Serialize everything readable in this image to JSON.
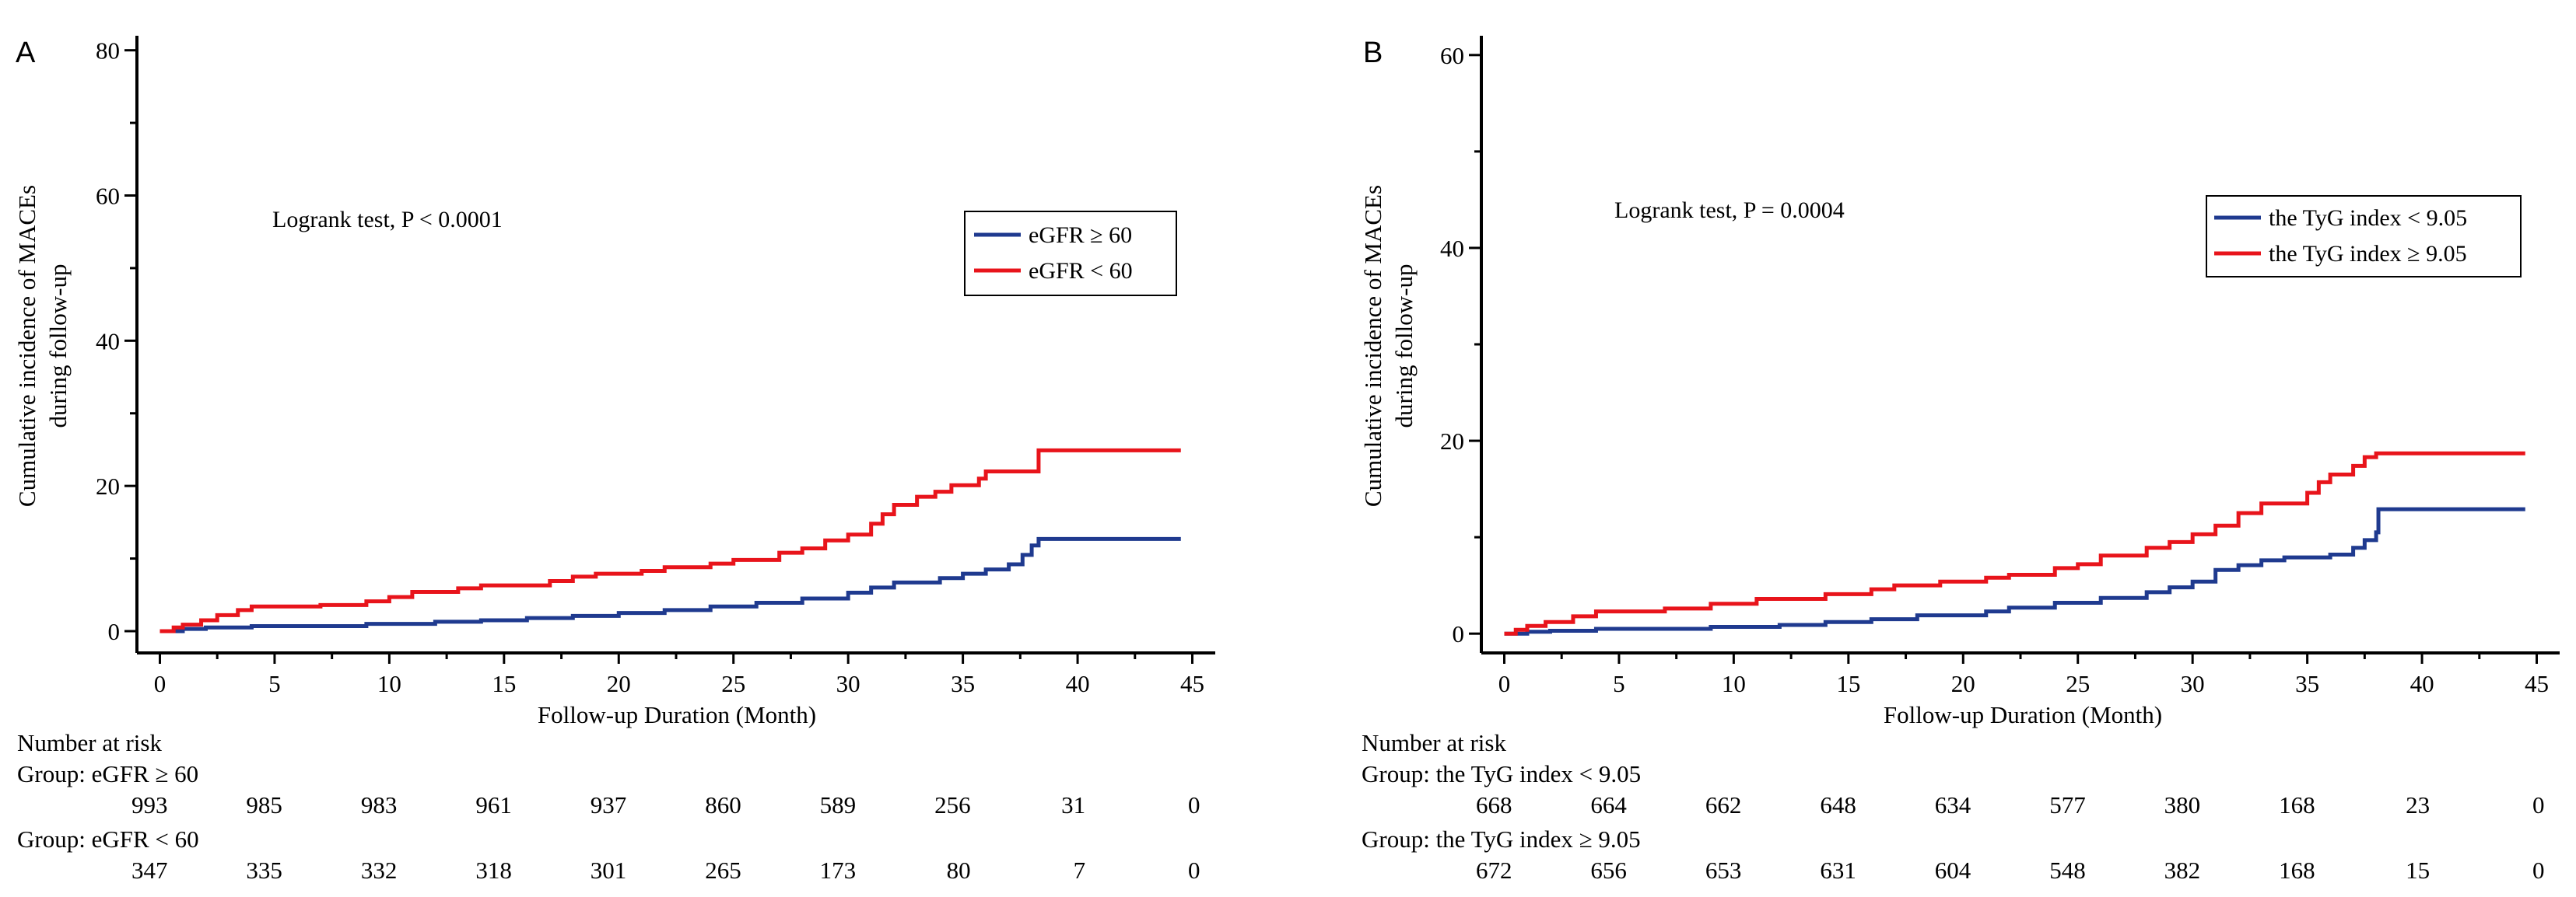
{
  "chart_data": [
    {
      "type": "line",
      "panel_label": "A",
      "xlabel": "Follow-up Duration (Month)",
      "ylabel_line1": "Cumulative incidence of MACEs",
      "ylabel_line2": "during follow-up",
      "xlim": [
        -1,
        46
      ],
      "ylim": [
        -3,
        82
      ],
      "xticks": [
        0,
        5,
        10,
        15,
        20,
        25,
        30,
        35,
        40,
        45
      ],
      "yticks": [
        0,
        20,
        40,
        60,
        80
      ],
      "annotation": "Logrank test, P < 0.0001",
      "series": [
        {
          "name": "eGFR ≥ 60",
          "color": "#1f3a8f",
          "points": [
            [
              0,
              0
            ],
            [
              1,
              0.3
            ],
            [
              2,
              0.5
            ],
            [
              4,
              0.7
            ],
            [
              9,
              1.0
            ],
            [
              12,
              1.3
            ],
            [
              14,
              1.5
            ],
            [
              16,
              1.8
            ],
            [
              18,
              2.1
            ],
            [
              20,
              2.5
            ],
            [
              22,
              2.9
            ],
            [
              24,
              3.4
            ],
            [
              26,
              3.9
            ],
            [
              28,
              4.5
            ],
            [
              30,
              5.3
            ],
            [
              31,
              6.0
            ],
            [
              32,
              6.7
            ],
            [
              34,
              7.3
            ],
            [
              35,
              7.9
            ],
            [
              36,
              8.5
            ],
            [
              37,
              9.2
            ],
            [
              37.6,
              10.5
            ],
            [
              38,
              11.8
            ],
            [
              38.3,
              12.7
            ],
            [
              44.5,
              12.7
            ]
          ]
        },
        {
          "name": "eGFR < 60",
          "color": "#e8141b",
          "points": [
            [
              0,
              0
            ],
            [
              0.6,
              0.5
            ],
            [
              1,
              0.9
            ],
            [
              1.8,
              1.5
            ],
            [
              2.5,
              2.2
            ],
            [
              3.4,
              2.9
            ],
            [
              4,
              3.4
            ],
            [
              7,
              3.6
            ],
            [
              9,
              4.1
            ],
            [
              10,
              4.7
            ],
            [
              11,
              5.4
            ],
            [
              13,
              5.9
            ],
            [
              14,
              6.3
            ],
            [
              17,
              6.9
            ],
            [
              18,
              7.5
            ],
            [
              19,
              7.9
            ],
            [
              21,
              8.3
            ],
            [
              22,
              8.8
            ],
            [
              24,
              9.3
            ],
            [
              25,
              9.8
            ],
            [
              27,
              10.8
            ],
            [
              28,
              11.4
            ],
            [
              29,
              12.5
            ],
            [
              30,
              13.3
            ],
            [
              31,
              14.8
            ],
            [
              31.5,
              16.1
            ],
            [
              32,
              17.4
            ],
            [
              33,
              18.5
            ],
            [
              33.8,
              19.2
            ],
            [
              34.5,
              20.1
            ],
            [
              35.7,
              21.0
            ],
            [
              36,
              22.0
            ],
            [
              38,
              22.0
            ],
            [
              38.3,
              24.9
            ],
            [
              44.5,
              24.9
            ]
          ]
        }
      ],
      "risk_table": {
        "title": "Number at risk",
        "groups": [
          {
            "label": "Group: eGFR ≥ 60",
            "values": [
              "993",
              "985",
              "983",
              "961",
              "937",
              "860",
              "589",
              "256",
              "31",
              "0"
            ]
          },
          {
            "label": "Group: eGFR < 60",
            "values": [
              "347",
              "335",
              "332",
              "318",
              "301",
              "265",
              "173",
              "80",
              "7",
              "0"
            ]
          }
        ]
      }
    },
    {
      "type": "line",
      "panel_label": "B",
      "xlabel": "Follow-up Duration (Month)",
      "ylabel_line1": "Cumulative incidence of MACEs",
      "ylabel_line2": "during follow-up",
      "xlim": [
        -1,
        46
      ],
      "ylim": [
        -2,
        62
      ],
      "xticks": [
        0,
        5,
        10,
        15,
        20,
        25,
        30,
        35,
        40,
        45
      ],
      "yticks": [
        0,
        20,
        40,
        60
      ],
      "annotation": "Logrank test, P = 0.0004",
      "series": [
        {
          "name": "the TyG index < 9.05",
          "color": "#1f3a8f",
          "points": [
            [
              0,
              0
            ],
            [
              1,
              0.2
            ],
            [
              2,
              0.3
            ],
            [
              4,
              0.5
            ],
            [
              9,
              0.7
            ],
            [
              12,
              0.9
            ],
            [
              14,
              1.2
            ],
            [
              16,
              1.5
            ],
            [
              18,
              1.9
            ],
            [
              21,
              2.3
            ],
            [
              22,
              2.7
            ],
            [
              24,
              3.2
            ],
            [
              26,
              3.7
            ],
            [
              28,
              4.3
            ],
            [
              29,
              4.8
            ],
            [
              30,
              5.4
            ],
            [
              31,
              6.6
            ],
            [
              32,
              7.1
            ],
            [
              33,
              7.6
            ],
            [
              34,
              7.9
            ],
            [
              36,
              8.2
            ],
            [
              37,
              8.9
            ],
            [
              37.5,
              9.7
            ],
            [
              38,
              10.5
            ],
            [
              38.1,
              12.9
            ],
            [
              44.5,
              12.9
            ]
          ]
        },
        {
          "name": "the TyG index ≥ 9.05",
          "color": "#e8141b",
          "points": [
            [
              0,
              0
            ],
            [
              0.5,
              0.4
            ],
            [
              1,
              0.8
            ],
            [
              1.8,
              1.2
            ],
            [
              3,
              1.8
            ],
            [
              4,
              2.3
            ],
            [
              7,
              2.6
            ],
            [
              9,
              3.1
            ],
            [
              11,
              3.6
            ],
            [
              14,
              4.1
            ],
            [
              16,
              4.6
            ],
            [
              17,
              5.0
            ],
            [
              19,
              5.4
            ],
            [
              21,
              5.8
            ],
            [
              22,
              6.1
            ],
            [
              24,
              6.8
            ],
            [
              25,
              7.2
            ],
            [
              26,
              8.1
            ],
            [
              28,
              8.9
            ],
            [
              29,
              9.5
            ],
            [
              30,
              10.3
            ],
            [
              31,
              11.2
            ],
            [
              32,
              12.5
            ],
            [
              33,
              13.5
            ],
            [
              35,
              14.6
            ],
            [
              35.5,
              15.7
            ],
            [
              36,
              16.5
            ],
            [
              37,
              17.4
            ],
            [
              37.5,
              18.3
            ],
            [
              38,
              18.7
            ],
            [
              44.5,
              18.7
            ]
          ]
        }
      ],
      "risk_table": {
        "title": "Number at risk",
        "groups": [
          {
            "label": "Group: the TyG index < 9.05",
            "values": [
              "668",
              "664",
              "662",
              "648",
              "634",
              "577",
              "380",
              "168",
              "23",
              "0"
            ]
          },
          {
            "label": "Group: the TyG index ≥ 9.05",
            "values": [
              "672",
              "656",
              "653",
              "631",
              "604",
              "548",
              "382",
              "168",
              "15",
              "0"
            ]
          }
        ]
      }
    }
  ]
}
